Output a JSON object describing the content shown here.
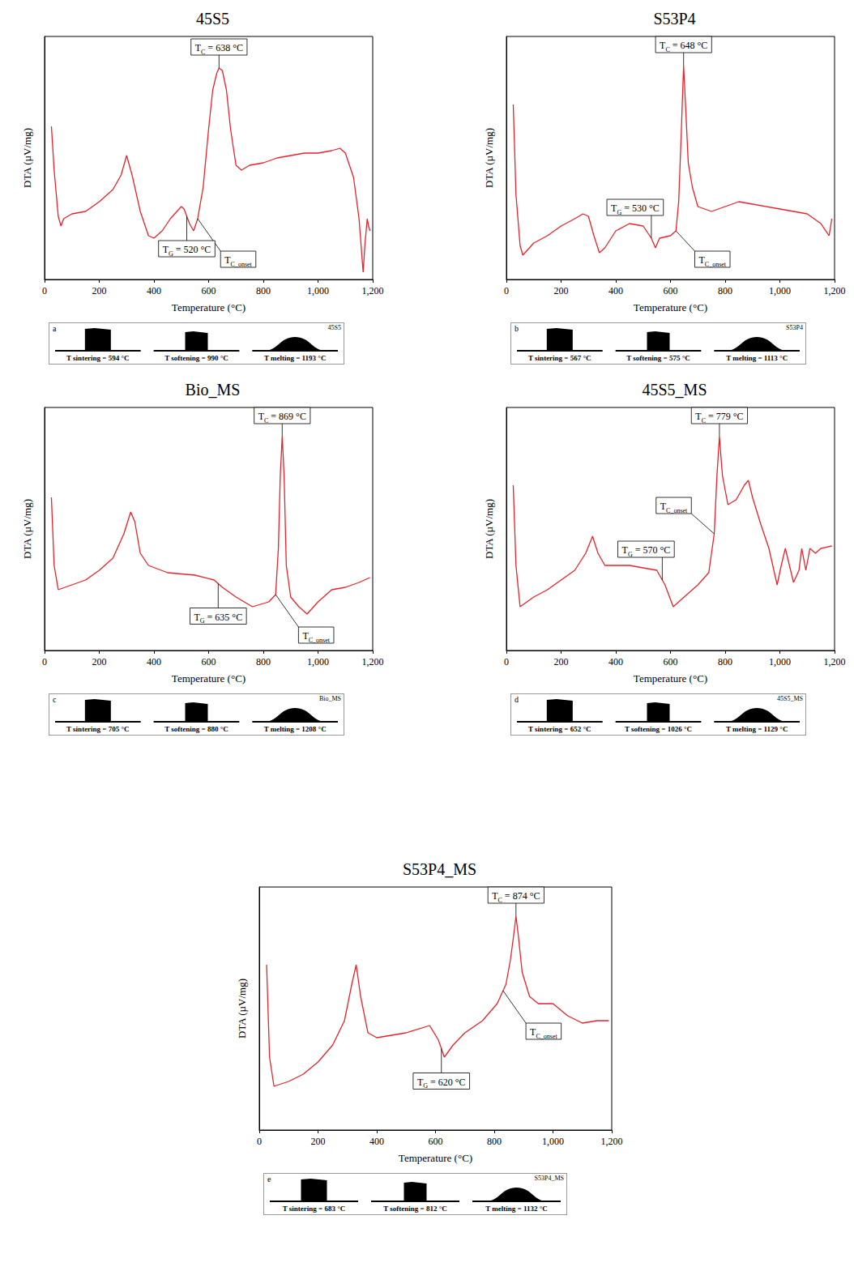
{
  "chart_data": [
    {
      "type": "line",
      "title": "45S5",
      "xlabel": "Temperature (°C)",
      "ylabel": "DTA (µV/mg)",
      "color": "#e8222a",
      "xlim": [
        0,
        1200
      ],
      "xticks": [
        0,
        200,
        400,
        600,
        800,
        1000,
        1200
      ],
      "ylim": [
        0,
        100
      ],
      "tick_labels": "x",
      "x": [
        25,
        35,
        50,
        60,
        70,
        100,
        150,
        200,
        250,
        280,
        300,
        320,
        350,
        380,
        400,
        430,
        460,
        500,
        510,
        530,
        545,
        560,
        580,
        600,
        615,
        630,
        638,
        650,
        665,
        680,
        700,
        720,
        750,
        800,
        850,
        900,
        950,
        1000,
        1050,
        1080,
        1100,
        1130,
        1150,
        1165,
        1172,
        1180,
        1185,
        1190
      ],
      "values": [
        63,
        45,
        26,
        22,
        25,
        27,
        28,
        32,
        37,
        43,
        51,
        43,
        28,
        18,
        17,
        20,
        25,
        30,
        29,
        23,
        20,
        25,
        38,
        62,
        78,
        85,
        87,
        86,
        78,
        62,
        47,
        45,
        47,
        48,
        50,
        51,
        52,
        52,
        53,
        54,
        52,
        42,
        25,
        3,
        15,
        25,
        22,
        20
      ],
      "annotations": [
        {
          "main": "T",
          "sub": "C",
          "rest": " = 638 °C",
          "x": 638
        },
        {
          "main": "T",
          "sub": "G",
          "rest": " = 520 °C",
          "x": 520
        },
        {
          "main": "T",
          "sub": "C_onset",
          "rest": "",
          "x": 560
        }
      ],
      "inset": {
        "letter": "a",
        "name": "45S5",
        "labels": [
          "T sintering = 594 °C",
          "T softening = 990 °C",
          "T melting = 1193 °C"
        ]
      }
    },
    {
      "type": "line",
      "title": "S53P4",
      "xlabel": "Temperature (°C)",
      "ylabel": "DTA (µV/mg)",
      "color": "#e8222a",
      "xlim": [
        0,
        1200
      ],
      "xticks": [
        0,
        200,
        400,
        600,
        800,
        1000,
        1200
      ],
      "ylim": [
        0,
        100
      ],
      "tick_labels": "x",
      "x": [
        25,
        35,
        50,
        60,
        100,
        150,
        200,
        250,
        280,
        300,
        320,
        340,
        360,
        400,
        450,
        500,
        530,
        545,
        560,
        600,
        620,
        630,
        640,
        648,
        655,
        665,
        680,
        700,
        750,
        800,
        850,
        900,
        1000,
        1100,
        1150,
        1180,
        1190
      ],
      "values": [
        72,
        35,
        14,
        10,
        15,
        18,
        22,
        25,
        27,
        26,
        18,
        11,
        13,
        20,
        23,
        22,
        17,
        13,
        17,
        18,
        20,
        32,
        62,
        88,
        72,
        48,
        38,
        30,
        28,
        30,
        32,
        31,
        29,
        27,
        23,
        18,
        25
      ],
      "annotations": [
        {
          "main": "T",
          "sub": "C",
          "rest": " = 648 °C",
          "x": 648
        },
        {
          "main": "T",
          "sub": "G",
          "rest": " = 530 °C",
          "x": 530
        },
        {
          "main": "T",
          "sub": "C_onset",
          "rest": "",
          "x": 620
        }
      ],
      "inset": {
        "letter": "b",
        "name": "S53P4",
        "labels": [
          "T sintering = 567 °C",
          "T softening = 575 °C",
          "T melting = 1113 °C"
        ]
      }
    },
    {
      "type": "line",
      "title": "Bio_MS",
      "xlabel": "Temperature (°C)",
      "ylabel": "DTA (µV/mg)",
      "color": "#e8222a",
      "xlim": [
        0,
        1200
      ],
      "xticks": [
        0,
        200,
        400,
        600,
        800,
        1000,
        1200
      ],
      "ylim": [
        0,
        100
      ],
      "tick_labels": "x",
      "x": [
        25,
        35,
        50,
        100,
        150,
        200,
        250,
        290,
        315,
        330,
        350,
        380,
        450,
        550,
        620,
        650,
        700,
        760,
        820,
        845,
        855,
        862,
        869,
        876,
        884,
        900,
        930,
        960,
        1000,
        1050,
        1100,
        1150,
        1190
      ],
      "values": [
        63,
        35,
        25,
        27,
        29,
        33,
        38,
        48,
        57,
        53,
        40,
        35,
        32,
        31,
        29,
        26,
        22,
        18,
        20,
        23,
        42,
        72,
        88,
        72,
        35,
        22,
        18,
        15,
        20,
        25,
        26,
        28,
        30
      ],
      "annotations": [
        {
          "main": "T",
          "sub": "C",
          "rest": " = 869 °C",
          "x": 869
        },
        {
          "main": "T",
          "sub": "G",
          "rest": " = 635 °C",
          "x": 635
        },
        {
          "main": "T",
          "sub": "C_onset",
          "rest": "",
          "x": 845
        }
      ],
      "inset": {
        "letter": "c",
        "name": "Bio_MS",
        "labels": [
          "T sintering = 705 °C",
          "T softening = 880 °C",
          "T melting = 1208 °C"
        ]
      }
    },
    {
      "type": "line",
      "title": "45S5_MS",
      "xlabel": "Temperature (°C)",
      "ylabel": "DTA (µV/mg)",
      "color": "#e8222a",
      "xlim": [
        0,
        1200
      ],
      "xticks": [
        0,
        200,
        400,
        600,
        800,
        1000,
        1200
      ],
      "ylim": [
        0,
        100
      ],
      "tick_labels": "x",
      "x": [
        25,
        35,
        50,
        100,
        150,
        200,
        250,
        290,
        315,
        335,
        360,
        450,
        550,
        580,
        610,
        650,
        700,
        740,
        760,
        770,
        779,
        790,
        810,
        840,
        870,
        885,
        900,
        930,
        960,
        990,
        1005,
        1020,
        1035,
        1050,
        1070,
        1080,
        1095,
        1110,
        1130,
        1150,
        1190
      ],
      "values": [
        68,
        35,
        18,
        22,
        25,
        29,
        33,
        40,
        47,
        40,
        35,
        35,
        33,
        27,
        18,
        22,
        27,
        32,
        48,
        72,
        88,
        72,
        60,
        62,
        68,
        70,
        63,
        52,
        42,
        27,
        35,
        42,
        35,
        28,
        33,
        42,
        33,
        42,
        40,
        42,
        43
      ],
      "annotations": [
        {
          "main": "T",
          "sub": "C",
          "rest": " = 779 °C",
          "x": 779
        },
        {
          "main": "T",
          "sub": "G",
          "rest": " = 570 °C",
          "x": 570
        },
        {
          "main": "T",
          "sub": "C_onset",
          "rest": "",
          "x": 760
        }
      ],
      "inset": {
        "letter": "d",
        "name": "45S5_MS",
        "labels": [
          "T sintering = 652 °C",
          "T softening = 1026 °C",
          "T melting = 1129 °C"
        ]
      }
    },
    {
      "type": "line",
      "title": "S53P4_MS",
      "xlabel": "Temperature (°C)",
      "ylabel": "DTA (µV/mg)",
      "color": "#e8222a",
      "xlim": [
        0,
        1200
      ],
      "xticks": [
        0,
        200,
        400,
        600,
        800,
        1000,
        1200
      ],
      "ylim": [
        0,
        100
      ],
      "tick_labels": "x",
      "x": [
        25,
        35,
        50,
        100,
        150,
        200,
        250,
        290,
        315,
        330,
        345,
        370,
        400,
        500,
        580,
        610,
        630,
        660,
        700,
        760,
        810,
        840,
        855,
        866,
        874,
        882,
        895,
        920,
        950,
        1000,
        1050,
        1100,
        1150,
        1190
      ],
      "values": [
        68,
        30,
        18,
        20,
        23,
        28,
        35,
        45,
        60,
        68,
        55,
        40,
        38,
        40,
        43,
        37,
        30,
        35,
        40,
        45,
        52,
        60,
        70,
        80,
        88,
        80,
        65,
        55,
        52,
        52,
        47,
        44,
        45,
        45
      ],
      "annotations": [
        {
          "main": "T",
          "sub": "C",
          "rest": " = 874 °C",
          "x": 874
        },
        {
          "main": "T",
          "sub": "G",
          "rest": " = 620 °C",
          "x": 620
        },
        {
          "main": "T",
          "sub": "C_onset",
          "rest": "",
          "x": 830
        }
      ],
      "inset": {
        "letter": "e",
        "name": "S53P4_MS",
        "labels": [
          "T sintering = 683 °C",
          "T softening = 812 °C",
          "T melting = 1132 °C"
        ]
      }
    }
  ]
}
